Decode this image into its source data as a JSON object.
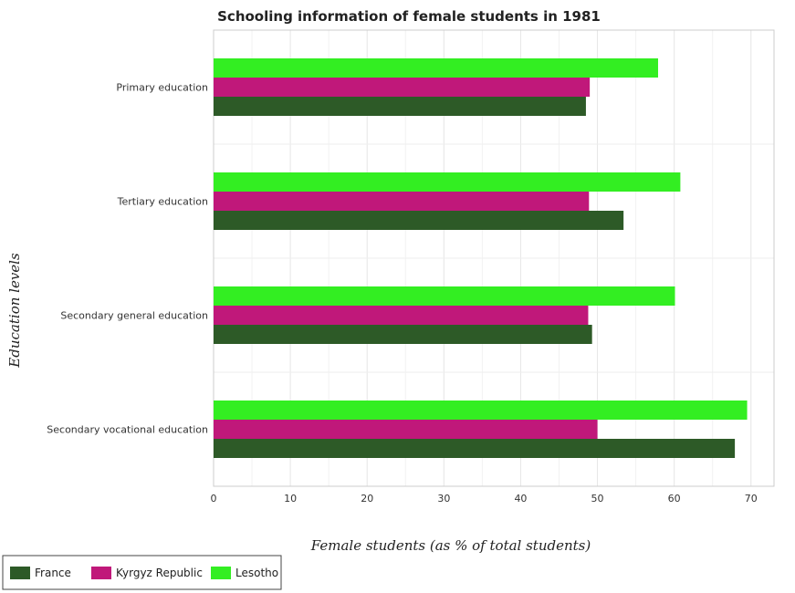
{
  "chart_data": {
    "type": "bar",
    "orientation": "horizontal",
    "title": "Schooling information of female students in 1981",
    "xlabel": "Female students (as % of total students)",
    "ylabel": "Education levels",
    "xlim": [
      0,
      73
    ],
    "xticks": [
      0,
      10,
      20,
      30,
      40,
      50,
      60,
      70
    ],
    "grid": true,
    "legend_position": "bottom-left",
    "categories": [
      "Primary education",
      "Tertiary education",
      "Secondary general education",
      "Secondary vocational education"
    ],
    "series": [
      {
        "name": "France",
        "color": "#2d5a27",
        "values": [
          48.5,
          53.4,
          49.3,
          67.9
        ]
      },
      {
        "name": "Kyrgyz Republic",
        "color": "#c0187a",
        "values": [
          49.0,
          48.9,
          48.8,
          50.0
        ]
      },
      {
        "name": "Lesotho",
        "color": "#33ee22",
        "values": [
          57.9,
          60.8,
          60.1,
          69.5
        ]
      }
    ]
  }
}
